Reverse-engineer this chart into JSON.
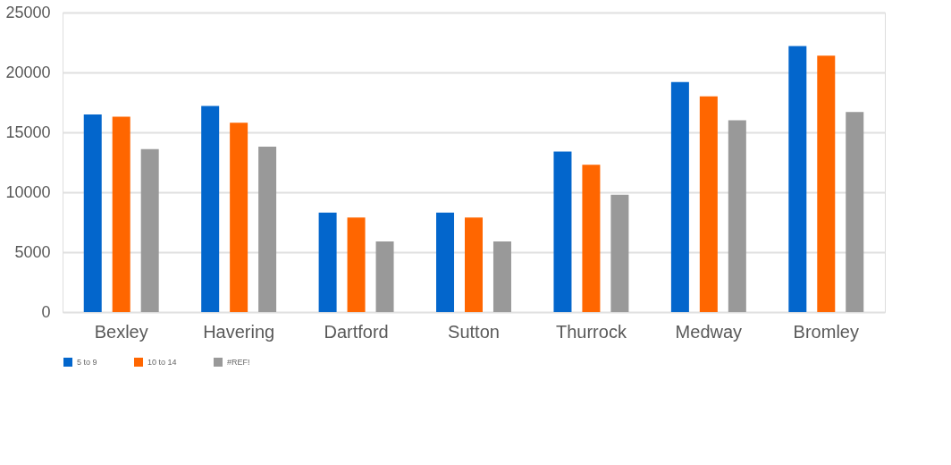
{
  "chart_data": {
    "type": "bar",
    "categories": [
      "Bexley",
      "Havering",
      "Dartford",
      "Sutton",
      "Thurrock",
      "Medway",
      "Bromley"
    ],
    "series": [
      {
        "name": "5 to 9",
        "color": "#0366cc",
        "values": [
          16500,
          17200,
          8300,
          8300,
          13400,
          19200,
          22200
        ]
      },
      {
        "name": "10 to 14",
        "color": "#ff6600",
        "values": [
          16300,
          15800,
          7900,
          7900,
          12300,
          18000,
          21400
        ]
      },
      {
        "name": "#REF!",
        "color": "#999999",
        "values": [
          13600,
          13800,
          5900,
          5900,
          9800,
          16000,
          16700
        ]
      }
    ],
    "ylim": [
      0,
      25000
    ],
    "yticks": [
      0,
      5000,
      10000,
      15000,
      20000,
      25000
    ],
    "grid": "y",
    "legend": "bottom"
  }
}
